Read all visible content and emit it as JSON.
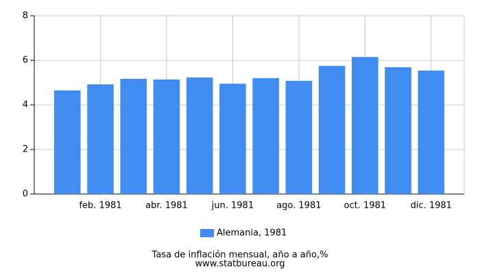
{
  "chart_data": {
    "type": "bar",
    "categories": [
      null,
      "feb. 1981",
      null,
      "abr. 1981",
      null,
      "jun. 1981",
      null,
      "ago. 1981",
      null,
      "oct. 1981",
      null,
      "dic. 1981"
    ],
    "series": [
      {
        "name": "Alemania, 1981",
        "color": "#418cf0",
        "values": [
          4.65,
          4.92,
          5.17,
          5.14,
          5.23,
          4.95,
          5.2,
          5.08,
          5.75,
          6.15,
          5.69,
          5.54
        ]
      }
    ],
    "ylim": [
      0,
      8
    ],
    "yticks": [
      0,
      2,
      4,
      6,
      8
    ],
    "grid": true,
    "caption": "Tasa de inflación mensual, año a año,%",
    "source": "www.statbureau.org"
  }
}
